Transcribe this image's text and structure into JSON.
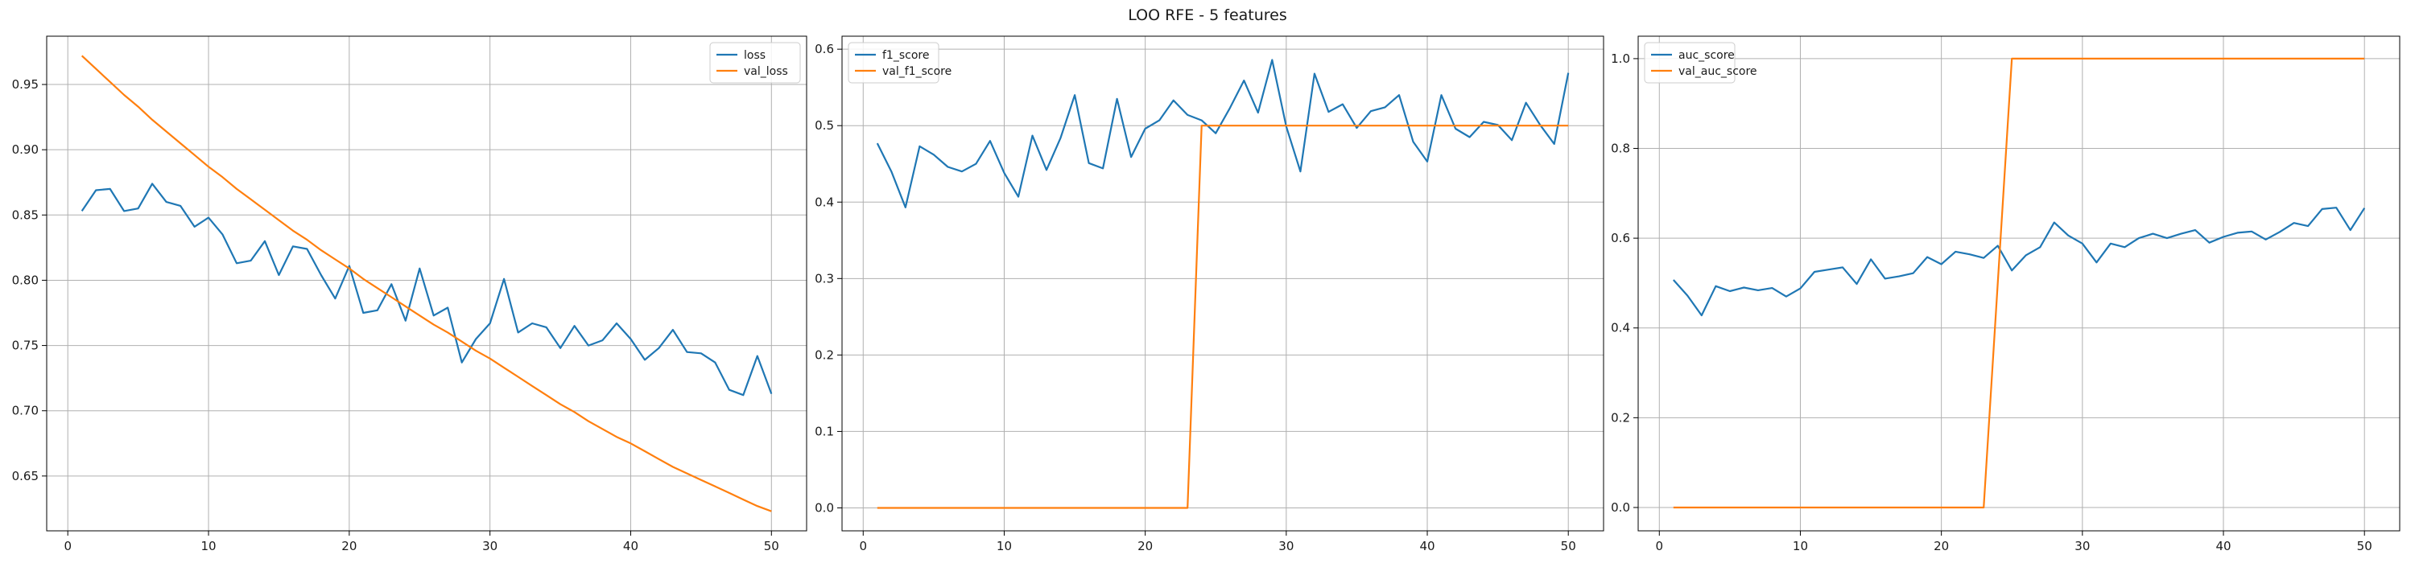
{
  "figure": {
    "title": "LOO RFE - 5 features",
    "colors": {
      "blue": "#1f77b4",
      "orange": "#ff7f0e"
    }
  },
  "chart_data": [
    {
      "type": "line",
      "grid": true,
      "legend_position": "top-right",
      "xlim": [
        -1.5,
        52.5
      ],
      "ylim": [
        0.608,
        0.987
      ],
      "xticks": [
        0,
        10,
        20,
        30,
        40,
        50
      ],
      "yticks": [
        0.65,
        0.7,
        0.75,
        0.8,
        0.85,
        0.9,
        0.95
      ],
      "ytick_labels": [
        "0.65",
        "0.70",
        "0.75",
        "0.80",
        "0.85",
        "0.90",
        "0.95"
      ],
      "x": [
        1,
        2,
        3,
        4,
        5,
        6,
        7,
        8,
        9,
        10,
        11,
        12,
        13,
        14,
        15,
        16,
        17,
        18,
        19,
        20,
        21,
        22,
        23,
        24,
        25,
        26,
        27,
        28,
        29,
        30,
        31,
        32,
        33,
        34,
        35,
        36,
        37,
        38,
        39,
        40,
        41,
        42,
        43,
        44,
        45,
        46,
        47,
        48,
        49,
        50
      ],
      "series": [
        {
          "name": "loss",
          "color": "#1f77b4",
          "values": [
            0.853,
            0.869,
            0.87,
            0.853,
            0.855,
            0.874,
            0.86,
            0.857,
            0.841,
            0.848,
            0.835,
            0.813,
            0.815,
            0.83,
            0.804,
            0.826,
            0.824,
            0.804,
            0.786,
            0.811,
            0.775,
            0.777,
            0.797,
            0.769,
            0.809,
            0.773,
            0.779,
            0.737,
            0.755,
            0.767,
            0.801,
            0.76,
            0.767,
            0.764,
            0.748,
            0.765,
            0.75,
            0.754,
            0.767,
            0.755,
            0.739,
            0.748,
            0.762,
            0.745,
            0.744,
            0.737,
            0.716,
            0.712,
            0.742,
            0.713
          ]
        },
        {
          "name": "val_loss",
          "color": "#ff7f0e",
          "values": [
            0.972,
            0.962,
            0.952,
            0.942,
            0.933,
            0.923,
            0.914,
            0.905,
            0.896,
            0.887,
            0.879,
            0.87,
            0.862,
            0.854,
            0.846,
            0.838,
            0.831,
            0.823,
            0.816,
            0.809,
            0.801,
            0.794,
            0.787,
            0.78,
            0.773,
            0.766,
            0.76,
            0.753,
            0.746,
            0.74,
            0.733,
            0.726,
            0.719,
            0.712,
            0.705,
            0.699,
            0.692,
            0.686,
            0.68,
            0.675,
            0.669,
            0.663,
            0.657,
            0.652,
            0.647,
            0.642,
            0.637,
            0.632,
            0.627,
            0.623
          ]
        }
      ]
    },
    {
      "type": "line",
      "grid": true,
      "legend_position": "top-left",
      "xlim": [
        -1.5,
        52.5
      ],
      "ylim": [
        -0.03,
        0.617
      ],
      "xticks": [
        0,
        10,
        20,
        30,
        40,
        50
      ],
      "yticks": [
        0.0,
        0.1,
        0.2,
        0.3,
        0.4,
        0.5,
        0.6
      ],
      "ytick_labels": [
        "0.0",
        "0.1",
        "0.2",
        "0.3",
        "0.4",
        "0.5",
        "0.6"
      ],
      "x": [
        1,
        2,
        3,
        4,
        5,
        6,
        7,
        8,
        9,
        10,
        11,
        12,
        13,
        14,
        15,
        16,
        17,
        18,
        19,
        20,
        21,
        22,
        23,
        24,
        25,
        26,
        27,
        28,
        29,
        30,
        31,
        32,
        33,
        34,
        35,
        36,
        37,
        38,
        39,
        40,
        41,
        42,
        43,
        44,
        45,
        46,
        47,
        48,
        49,
        50
      ],
      "series": [
        {
          "name": "f1_score",
          "color": "#1f77b4",
          "values": [
            0.477,
            0.44,
            0.393,
            0.473,
            0.462,
            0.446,
            0.44,
            0.45,
            0.48,
            0.438,
            0.407,
            0.487,
            0.442,
            0.484,
            0.54,
            0.451,
            0.444,
            0.535,
            0.459,
            0.496,
            0.507,
            0.533,
            0.514,
            0.507,
            0.49,
            0.523,
            0.559,
            0.517,
            0.586,
            0.499,
            0.44,
            0.568,
            0.518,
            0.528,
            0.497,
            0.519,
            0.524,
            0.54,
            0.479,
            0.453,
            0.54,
            0.496,
            0.485,
            0.505,
            0.501,
            0.481,
            0.53,
            0.501,
            0.476,
            0.569
          ]
        },
        {
          "name": "val_f1_score",
          "color": "#ff7f0e",
          "values": [
            0,
            0,
            0,
            0,
            0,
            0,
            0,
            0,
            0,
            0,
            0,
            0,
            0,
            0,
            0,
            0,
            0,
            0,
            0,
            0,
            0,
            0,
            0,
            0.5,
            0.5,
            0.5,
            0.5,
            0.5,
            0.5,
            0.5,
            0.5,
            0.5,
            0.5,
            0.5,
            0.5,
            0.5,
            0.5,
            0.5,
            0.5,
            0.5,
            0.5,
            0.5,
            0.5,
            0.5,
            0.5,
            0.5,
            0.5,
            0.5,
            0.5,
            0.5
          ]
        }
      ]
    },
    {
      "type": "line",
      "grid": true,
      "legend_position": "top-left",
      "xlim": [
        -1.5,
        52.5
      ],
      "ylim": [
        -0.052,
        1.05
      ],
      "xticks": [
        0,
        10,
        20,
        30,
        40,
        50
      ],
      "yticks": [
        0.0,
        0.2,
        0.4,
        0.6,
        0.8,
        1.0
      ],
      "ytick_labels": [
        "0.0",
        "0.2",
        "0.4",
        "0.6",
        "0.8",
        "1.0"
      ],
      "x": [
        1,
        2,
        3,
        4,
        5,
        6,
        7,
        8,
        9,
        10,
        11,
        12,
        13,
        14,
        15,
        16,
        17,
        18,
        19,
        20,
        21,
        22,
        23,
        24,
        25,
        26,
        27,
        28,
        29,
        30,
        31,
        32,
        33,
        34,
        35,
        36,
        37,
        38,
        39,
        40,
        41,
        42,
        43,
        44,
        45,
        46,
        47,
        48,
        49,
        50
      ],
      "series": [
        {
          "name": "auc_score",
          "color": "#1f77b4",
          "values": [
            0.507,
            0.472,
            0.428,
            0.493,
            0.482,
            0.49,
            0.484,
            0.489,
            0.47,
            0.488,
            0.525,
            0.53,
            0.535,
            0.498,
            0.553,
            0.51,
            0.515,
            0.522,
            0.558,
            0.542,
            0.57,
            0.564,
            0.556,
            0.583,
            0.528,
            0.562,
            0.58,
            0.635,
            0.606,
            0.588,
            0.546,
            0.588,
            0.58,
            0.6,
            0.61,
            0.6,
            0.61,
            0.618,
            0.59,
            0.603,
            0.612,
            0.615,
            0.597,
            0.614,
            0.634,
            0.627,
            0.665,
            0.668,
            0.618,
            0.667
          ]
        },
        {
          "name": "val_auc_score",
          "color": "#ff7f0e",
          "values": [
            0,
            0,
            0,
            0,
            0,
            0,
            0,
            0,
            0,
            0,
            0,
            0,
            0,
            0,
            0,
            0,
            0,
            0,
            0,
            0,
            0,
            0,
            0,
            0.5,
            1,
            1,
            1,
            1,
            1,
            1,
            1,
            1,
            1,
            1,
            1,
            1,
            1,
            1,
            1,
            1,
            1,
            1,
            1,
            1,
            1,
            1,
            1,
            1,
            1,
            1
          ]
        }
      ]
    }
  ]
}
